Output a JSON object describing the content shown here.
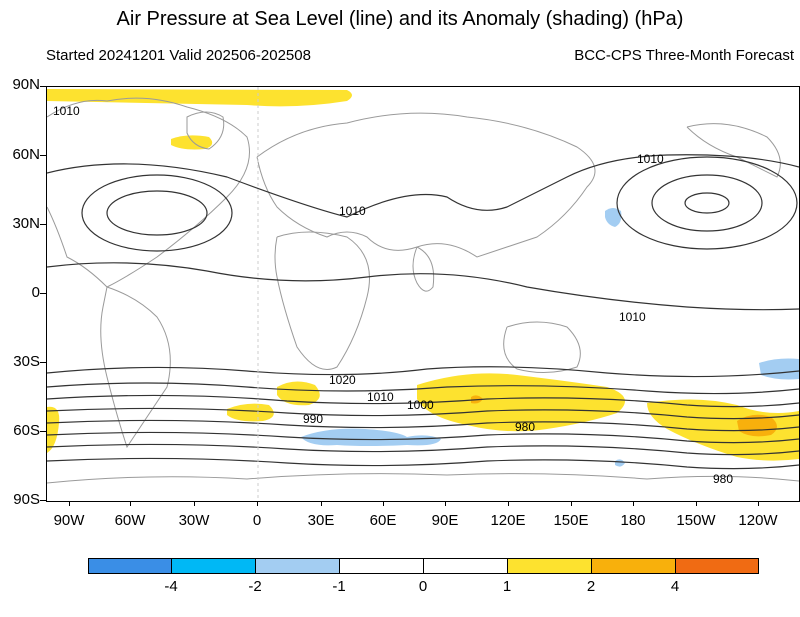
{
  "header": {
    "title": "Air Pressure at Sea Level (line) and its Anomaly (shading) (hPa)",
    "started": "Started 20241201  Valid 202506-202508",
    "source": "BCC-CPS Three-Month Forecast"
  },
  "axes": {
    "lat_labels": [
      "90N",
      "60N",
      "30N",
      "0",
      "30S",
      "60S",
      "90S"
    ],
    "lon_labels": [
      "90W",
      "60W",
      "30W",
      "0",
      "30E",
      "60E",
      "90E",
      "120E",
      "150E",
      "180",
      "150W",
      "120W"
    ]
  },
  "contour_labels": [
    "1010",
    "1010",
    "1010",
    "1010",
    "1020",
    "1010",
    "1000",
    "990",
    "980",
    "980"
  ],
  "colorbar": {
    "labels": [
      "-4",
      "-2",
      "-1",
      "0",
      "1",
      "2",
      "4"
    ],
    "colors": [
      "#3a8ee6",
      "#00b8f5",
      "#a3cdf2",
      "#ffffff",
      "#ffffff",
      "#fde22f",
      "#f8b00c",
      "#f06b13"
    ]
  },
  "colors": {
    "positive_1": "#fde22f",
    "positive_2": "#f8b00c",
    "negative_1": "#a3cdf2",
    "contour": "#333333",
    "coast": "#9a9a9a"
  }
}
